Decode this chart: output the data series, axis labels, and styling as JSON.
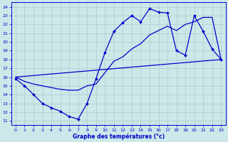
{
  "xlabel": "Graphe des températures (°c)",
  "bg_color": "#cce8e8",
  "grid_color": "#aacece",
  "line_color": "#0000cc",
  "xlim": [
    -0.5,
    23.5
  ],
  "ylim": [
    10.5,
    24.5
  ],
  "yticks": [
    11,
    12,
    13,
    14,
    15,
    16,
    17,
    18,
    19,
    20,
    21,
    22,
    23,
    24
  ],
  "xticks": [
    0,
    1,
    2,
    3,
    4,
    5,
    6,
    7,
    8,
    9,
    10,
    11,
    12,
    13,
    14,
    15,
    16,
    17,
    18,
    19,
    20,
    21,
    22,
    23
  ],
  "curve1_x": [
    0,
    1,
    2,
    3,
    4,
    5,
    6,
    7,
    8,
    9,
    10,
    11,
    12,
    13,
    14,
    15,
    16,
    17,
    18,
    19,
    20,
    21,
    22,
    23
  ],
  "curve1_y": [
    15.8,
    15.0,
    14.0,
    13.0,
    12.5,
    12.1,
    11.5,
    11.2,
    13.0,
    15.8,
    18.8,
    21.2,
    22.2,
    23.0,
    22.3,
    23.8,
    23.4,
    23.3,
    19.0,
    18.5,
    23.0,
    21.2,
    19.2,
    18.0
  ],
  "curve2_x": [
    0,
    1,
    2,
    3,
    4,
    5,
    6,
    7,
    8,
    9,
    10,
    11,
    12,
    13,
    14,
    15,
    16,
    17,
    18,
    19,
    20,
    21,
    22,
    23
  ],
  "curve2_y": [
    16.0,
    15.5,
    15.2,
    15.0,
    14.8,
    14.6,
    14.5,
    14.5,
    15.0,
    15.2,
    16.5,
    17.8,
    18.3,
    19.2,
    19.8,
    20.8,
    21.3,
    21.8,
    21.3,
    22.0,
    22.3,
    22.8,
    22.8,
    18.0
  ],
  "curve3_x": [
    0,
    23
  ],
  "curve3_y": [
    16.0,
    18.0
  ]
}
